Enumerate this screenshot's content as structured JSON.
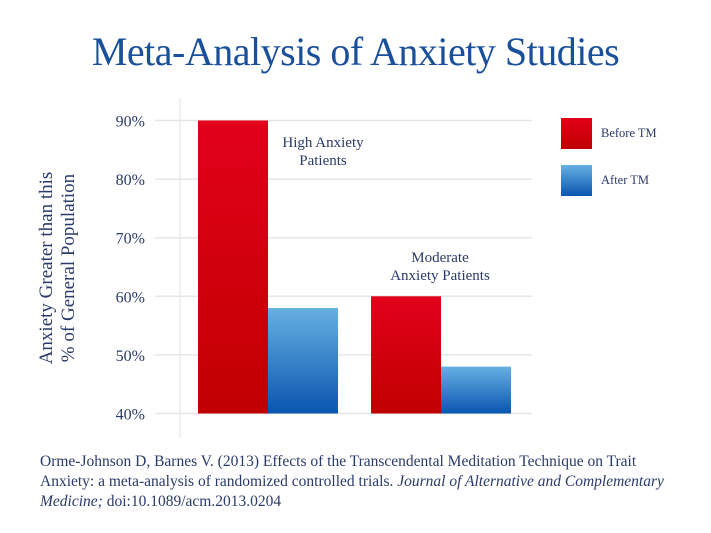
{
  "title": "Meta-Analysis of Anxiety Studies",
  "citation": {
    "text": "Orme-Johnson D, Barnes V. (2013) Effects of the Transcendental Meditation Technique on Trait Anxiety: a meta-analysis of randomized controlled trials. ",
    "journal": "Journal of Alternative and Complementary Medicine;",
    "doi": " doi:10.1089/acm.2013.0204"
  },
  "colors": {
    "title": "#1a4f9c",
    "text": "#2a3a6a",
    "before_top": "#e2001a",
    "before_bottom": "#c00000",
    "after_top": "#66b0e2",
    "after_bottom": "#0a55b0",
    "grid": "#e6e6e6"
  },
  "chart_data": {
    "type": "bar",
    "title": "Meta-Analysis of Anxiety Studies",
    "xlabel": "",
    "ylabel": "Anxiety Greater than this % of General Population",
    "ylabel_lines": [
      "Anxiety Greater than this",
      "% of General Population"
    ],
    "categories": [
      "High Anxiety Patients",
      "Moderate Anxiety Patients"
    ],
    "category_labels": [
      [
        "High Anxiety",
        "Patients"
      ],
      [
        "Moderate",
        "Anxiety Patients"
      ]
    ],
    "series": [
      {
        "name": "Before TM",
        "values": [
          90,
          60
        ]
      },
      {
        "name": "After TM",
        "values": [
          58,
          48
        ]
      }
    ],
    "ylim": [
      40,
      90
    ],
    "yticks": [
      40,
      50,
      60,
      70,
      80,
      90
    ],
    "ytick_labels": [
      "40%",
      "50%",
      "60%",
      "70%",
      "80%",
      "90%"
    ],
    "grid": true,
    "legend_position": "top-right"
  }
}
